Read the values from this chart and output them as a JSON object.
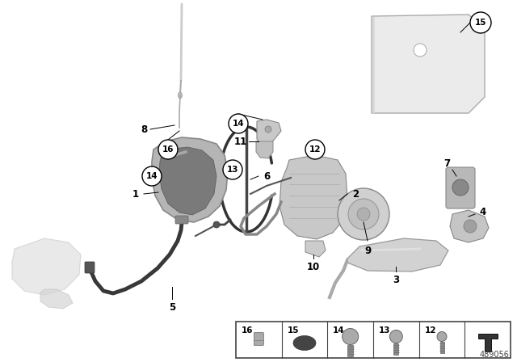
{
  "bg_color": "#ffffff",
  "part_number": "489056",
  "fig_width": 6.4,
  "fig_height": 4.48,
  "dpi": 100,
  "gray_lock": "#a8a8a8",
  "dark_lock": "#686868",
  "light_gray": "#d0d0d0",
  "mid_gray": "#b0b0b0",
  "dark_gray": "#505050",
  "ghost_gray": "#d8d8d8",
  "cable_color": "#383838",
  "line_color": "#222222"
}
